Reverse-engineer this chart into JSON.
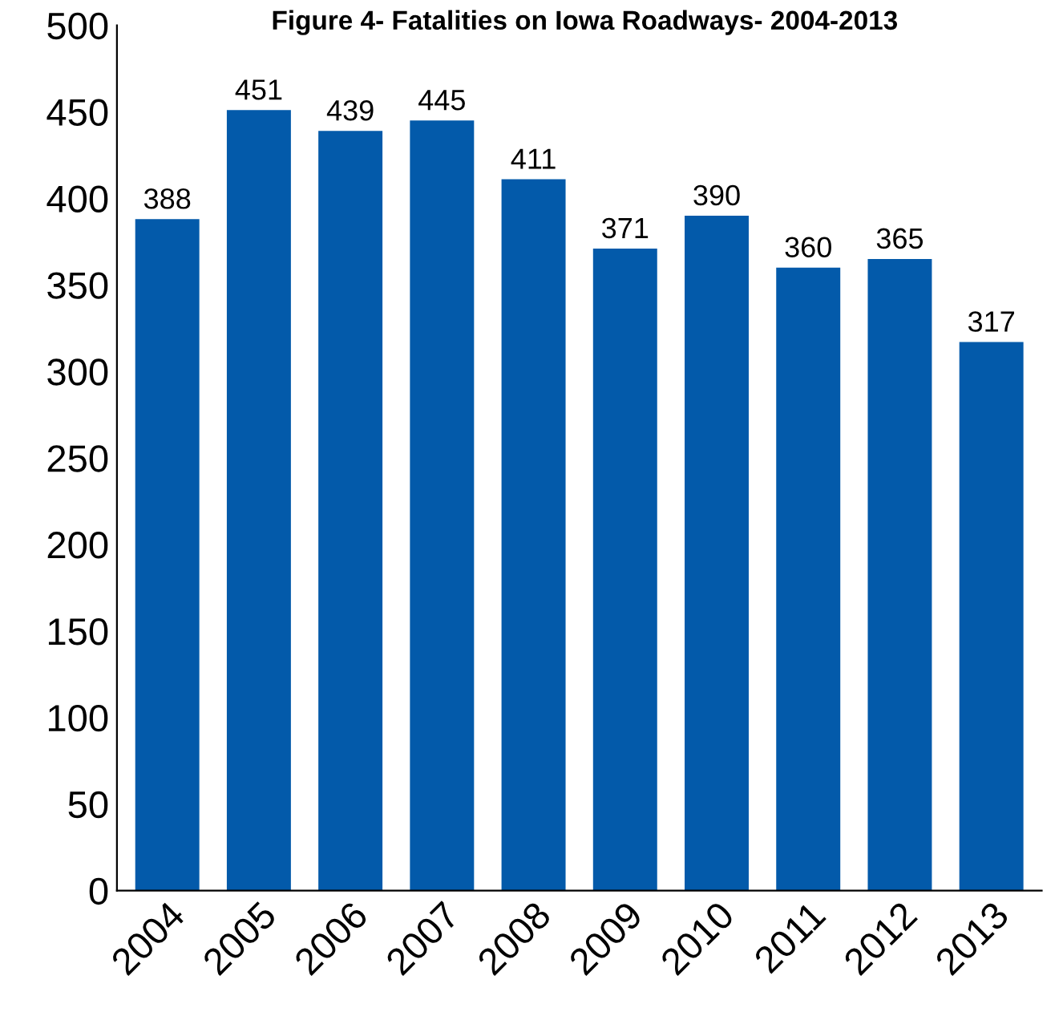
{
  "chart_data": {
    "type": "bar",
    "title": "Figure 4- Fatalities on Iowa Roadways- 2004-2013",
    "categories": [
      "2004",
      "2005",
      "2006",
      "2007",
      "2008",
      "2009",
      "2010",
      "2011",
      "2012",
      "2013"
    ],
    "values": [
      388,
      451,
      439,
      445,
      411,
      371,
      390,
      360,
      365,
      317
    ],
    "color": "#035aaa",
    "ylim": [
      0,
      500
    ],
    "yticks": [
      0,
      50,
      100,
      150,
      200,
      250,
      300,
      350,
      400,
      450,
      500
    ],
    "data_labels": true,
    "grid": false,
    "legend": false
  }
}
